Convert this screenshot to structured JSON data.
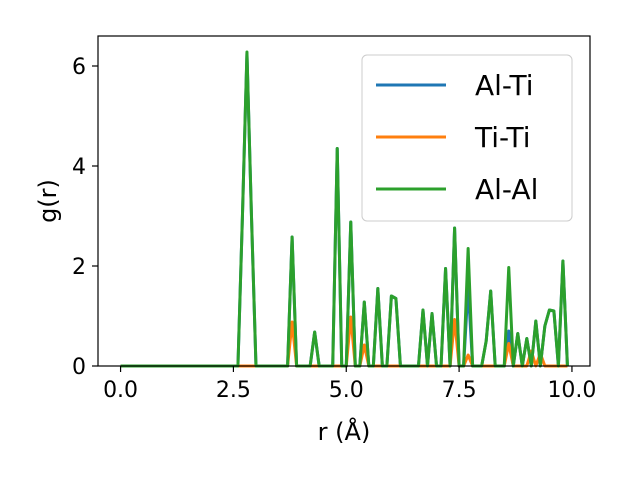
{
  "chart_data": {
    "type": "line",
    "xlabel": "r (Å)",
    "ylabel": "g(r)",
    "xlim": [
      -0.5,
      10.4
    ],
    "ylim": [
      0,
      6.6
    ],
    "x_ticks": [
      {
        "value": 0.0,
        "label": "0.0"
      },
      {
        "value": 2.5,
        "label": "2.5"
      },
      {
        "value": 5.0,
        "label": "5.0"
      },
      {
        "value": 7.5,
        "label": "7.5"
      },
      {
        "value": 10.0,
        "label": "10.0"
      }
    ],
    "y_ticks": [
      {
        "value": 0,
        "label": "0"
      },
      {
        "value": 2,
        "label": "2"
      },
      {
        "value": 4,
        "label": "4"
      },
      {
        "value": 6,
        "label": "6"
      }
    ],
    "grid": false,
    "legend_position": "top-right",
    "series": [
      {
        "name": "Al-Ti",
        "color": "#1f77b4",
        "points": [
          [
            0,
            0
          ],
          [
            2.6,
            0
          ],
          [
            2.7,
            3.0
          ],
          [
            2.8,
            6.25
          ],
          [
            2.9,
            3.0
          ],
          [
            3.0,
            0
          ],
          [
            3.7,
            0
          ],
          [
            3.8,
            2.58
          ],
          [
            3.9,
            0
          ],
          [
            4.2,
            0
          ],
          [
            4.3,
            0.68
          ],
          [
            4.4,
            0
          ],
          [
            4.7,
            0
          ],
          [
            4.8,
            4.35
          ],
          [
            4.9,
            0
          ],
          [
            5.0,
            0
          ],
          [
            5.1,
            2.88
          ],
          [
            5.2,
            0
          ],
          [
            5.3,
            0
          ],
          [
            5.4,
            1.28
          ],
          [
            5.5,
            0
          ],
          [
            5.6,
            0
          ],
          [
            5.7,
            1.55
          ],
          [
            5.8,
            0
          ],
          [
            5.9,
            0
          ],
          [
            6.0,
            1.4
          ],
          [
            6.1,
            1.35
          ],
          [
            6.2,
            0
          ],
          [
            6.6,
            0
          ],
          [
            6.7,
            1.12
          ],
          [
            6.8,
            0
          ],
          [
            6.9,
            1.05
          ],
          [
            7.0,
            0
          ],
          [
            7.1,
            0
          ],
          [
            7.2,
            1.95
          ],
          [
            7.3,
            0
          ],
          [
            7.4,
            2.76
          ],
          [
            7.5,
            0
          ],
          [
            7.6,
            0
          ],
          [
            7.7,
            1.6
          ],
          [
            7.8,
            0
          ],
          [
            8.0,
            0
          ],
          [
            8.1,
            0.5
          ],
          [
            8.2,
            1.5
          ],
          [
            8.3,
            0
          ],
          [
            8.5,
            0
          ],
          [
            8.6,
            0.7
          ],
          [
            8.7,
            0
          ],
          [
            8.8,
            0.65
          ],
          [
            8.9,
            0
          ],
          [
            9.0,
            0.55
          ],
          [
            9.1,
            0
          ],
          [
            9.2,
            0.9
          ],
          [
            9.3,
            0
          ],
          [
            9.4,
            0.8
          ],
          [
            9.5,
            1.12
          ],
          [
            9.6,
            1.1
          ],
          [
            9.7,
            0
          ],
          [
            9.8,
            2.1
          ],
          [
            9.9,
            0
          ]
        ]
      },
      {
        "name": "Ti-Ti",
        "color": "#ff7f0e",
        "points": [
          [
            0,
            0
          ],
          [
            3.7,
            0
          ],
          [
            3.8,
            0.88
          ],
          [
            3.9,
            0
          ],
          [
            5.0,
            0
          ],
          [
            5.1,
            0.98
          ],
          [
            5.2,
            0
          ],
          [
            5.3,
            0
          ],
          [
            5.4,
            0.42
          ],
          [
            5.5,
            0
          ],
          [
            7.3,
            0
          ],
          [
            7.4,
            0.93
          ],
          [
            7.5,
            0
          ],
          [
            7.6,
            0
          ],
          [
            7.7,
            0.22
          ],
          [
            7.8,
            0
          ],
          [
            8.5,
            0
          ],
          [
            8.6,
            0.45
          ],
          [
            8.7,
            0
          ],
          [
            9.0,
            0
          ],
          [
            9.1,
            0.3
          ],
          [
            9.2,
            0
          ],
          [
            9.3,
            0.25
          ],
          [
            9.4,
            0
          ],
          [
            9.9,
            0
          ]
        ]
      },
      {
        "name": "Al-Al",
        "color": "#2ca02c",
        "points": [
          [
            0,
            0
          ],
          [
            2.6,
            0
          ],
          [
            2.7,
            3.0
          ],
          [
            2.8,
            6.28
          ],
          [
            2.9,
            3.0
          ],
          [
            3.0,
            0
          ],
          [
            3.7,
            0
          ],
          [
            3.8,
            2.58
          ],
          [
            3.9,
            0
          ],
          [
            4.2,
            0
          ],
          [
            4.3,
            0.68
          ],
          [
            4.4,
            0
          ],
          [
            4.7,
            0
          ],
          [
            4.8,
            4.35
          ],
          [
            4.9,
            0
          ],
          [
            5.0,
            0
          ],
          [
            5.1,
            2.88
          ],
          [
            5.2,
            0
          ],
          [
            5.3,
            0
          ],
          [
            5.4,
            1.28
          ],
          [
            5.5,
            0
          ],
          [
            5.6,
            0
          ],
          [
            5.7,
            1.55
          ],
          [
            5.8,
            0
          ],
          [
            5.9,
            0
          ],
          [
            6.0,
            1.4
          ],
          [
            6.1,
            1.35
          ],
          [
            6.2,
            0
          ],
          [
            6.6,
            0
          ],
          [
            6.7,
            1.12
          ],
          [
            6.8,
            0
          ],
          [
            6.9,
            1.05
          ],
          [
            7.0,
            0
          ],
          [
            7.1,
            0
          ],
          [
            7.2,
            1.95
          ],
          [
            7.3,
            0
          ],
          [
            7.4,
            2.76
          ],
          [
            7.5,
            0
          ],
          [
            7.6,
            0
          ],
          [
            7.7,
            2.35
          ],
          [
            7.8,
            0
          ],
          [
            8.0,
            0
          ],
          [
            8.1,
            0.5
          ],
          [
            8.2,
            1.5
          ],
          [
            8.3,
            0
          ],
          [
            8.5,
            0
          ],
          [
            8.6,
            1.97
          ],
          [
            8.7,
            0
          ],
          [
            8.8,
            0.65
          ],
          [
            8.9,
            0
          ],
          [
            9.0,
            0.55
          ],
          [
            9.1,
            0
          ],
          [
            9.2,
            0.9
          ],
          [
            9.3,
            0
          ],
          [
            9.4,
            0.8
          ],
          [
            9.5,
            1.12
          ],
          [
            9.6,
            1.1
          ],
          [
            9.7,
            0
          ],
          [
            9.8,
            2.1
          ],
          [
            9.9,
            0
          ]
        ]
      }
    ]
  }
}
